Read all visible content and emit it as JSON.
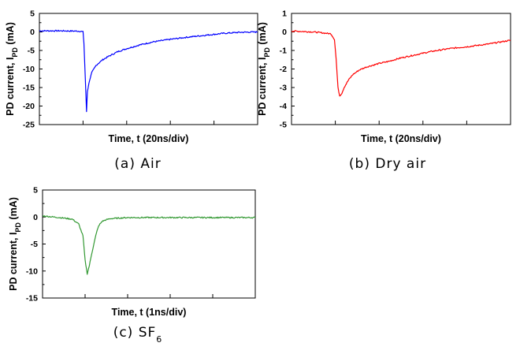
{
  "captions": [
    "(a) Air",
    "(b) Dry air",
    "(c) SF6"
  ],
  "chart_data": [
    {
      "type": "line",
      "caption": "(a) Air",
      "xlabel": "Time, t (20ns/div)",
      "ylabel": "PD current, I_PD (mA)",
      "ylim": [
        -25,
        5
      ],
      "yticks": [
        5,
        0,
        -5,
        -10,
        -15,
        -20,
        -25
      ],
      "x_divisions": 5,
      "series": [
        {
          "color": "#0000ff",
          "x": [
            0,
            0.5,
            0.95,
            1.0,
            1.02,
            1.05,
            1.08,
            1.1,
            1.15,
            1.2,
            1.3,
            1.45,
            1.6,
            1.8,
            2.0,
            2.3,
            2.6,
            3.0,
            3.4,
            3.8,
            4.2,
            4.6,
            5.0
          ],
          "values": [
            0.3,
            0.3,
            0.2,
            0.0,
            -3,
            -12,
            -21.5,
            -16,
            -13,
            -11,
            -9,
            -7.5,
            -6.5,
            -5.3,
            -4.5,
            -3.5,
            -2.7,
            -2.0,
            -1.4,
            -0.9,
            -0.4,
            -0.1,
            0.0
          ]
        }
      ]
    },
    {
      "type": "line",
      "caption": "(b) Dry air",
      "xlabel": "Time, t (20ns/div)",
      "ylabel": "PD current, I_PD (mA)",
      "ylim": [
        -5,
        1
      ],
      "yticks": [
        1,
        0,
        -1,
        -2,
        -3,
        -4,
        -5
      ],
      "x_divisions": 5,
      "series": [
        {
          "color": "#ff0000",
          "x": [
            0,
            0.5,
            0.9,
            0.98,
            1.02,
            1.06,
            1.1,
            1.15,
            1.2,
            1.3,
            1.4,
            1.55,
            1.7,
            1.85,
            2.0,
            2.2,
            2.5,
            2.8,
            3.2,
            3.6,
            4.0,
            4.5,
            5.0
          ],
          "values": [
            0.05,
            0.0,
            -0.1,
            -0.4,
            -1.5,
            -3.0,
            -3.45,
            -3.3,
            -3.0,
            -2.6,
            -2.3,
            -2.05,
            -1.9,
            -1.8,
            -1.7,
            -1.6,
            -1.4,
            -1.25,
            -1.05,
            -0.9,
            -0.8,
            -0.65,
            -0.45
          ]
        }
      ]
    },
    {
      "type": "line",
      "caption": "(c) SF6",
      "xlabel": "Time, t (1ns/div)",
      "ylabel": "PD current, I_PD (mA)",
      "ylim": [
        -15,
        5
      ],
      "yticks": [
        5,
        0,
        -5,
        -10,
        -15
      ],
      "x_divisions": 5,
      "series": [
        {
          "color": "#339933",
          "x": [
            0,
            0.4,
            0.7,
            0.85,
            0.95,
            1.0,
            1.05,
            1.1,
            1.15,
            1.2,
            1.25,
            1.3,
            1.35,
            1.4,
            1.5,
            1.6,
            1.8,
            2.0,
            2.5,
            3.0,
            4.0,
            5.0
          ],
          "values": [
            0.2,
            -0.1,
            -0.4,
            -1.3,
            -3.5,
            -8.0,
            -10.5,
            -9.0,
            -7.0,
            -5.2,
            -3.5,
            -2.0,
            -1.3,
            -0.8,
            -0.5,
            -0.3,
            -0.2,
            -0.1,
            -0.1,
            -0.1,
            -0.1,
            -0.1
          ]
        }
      ]
    }
  ]
}
